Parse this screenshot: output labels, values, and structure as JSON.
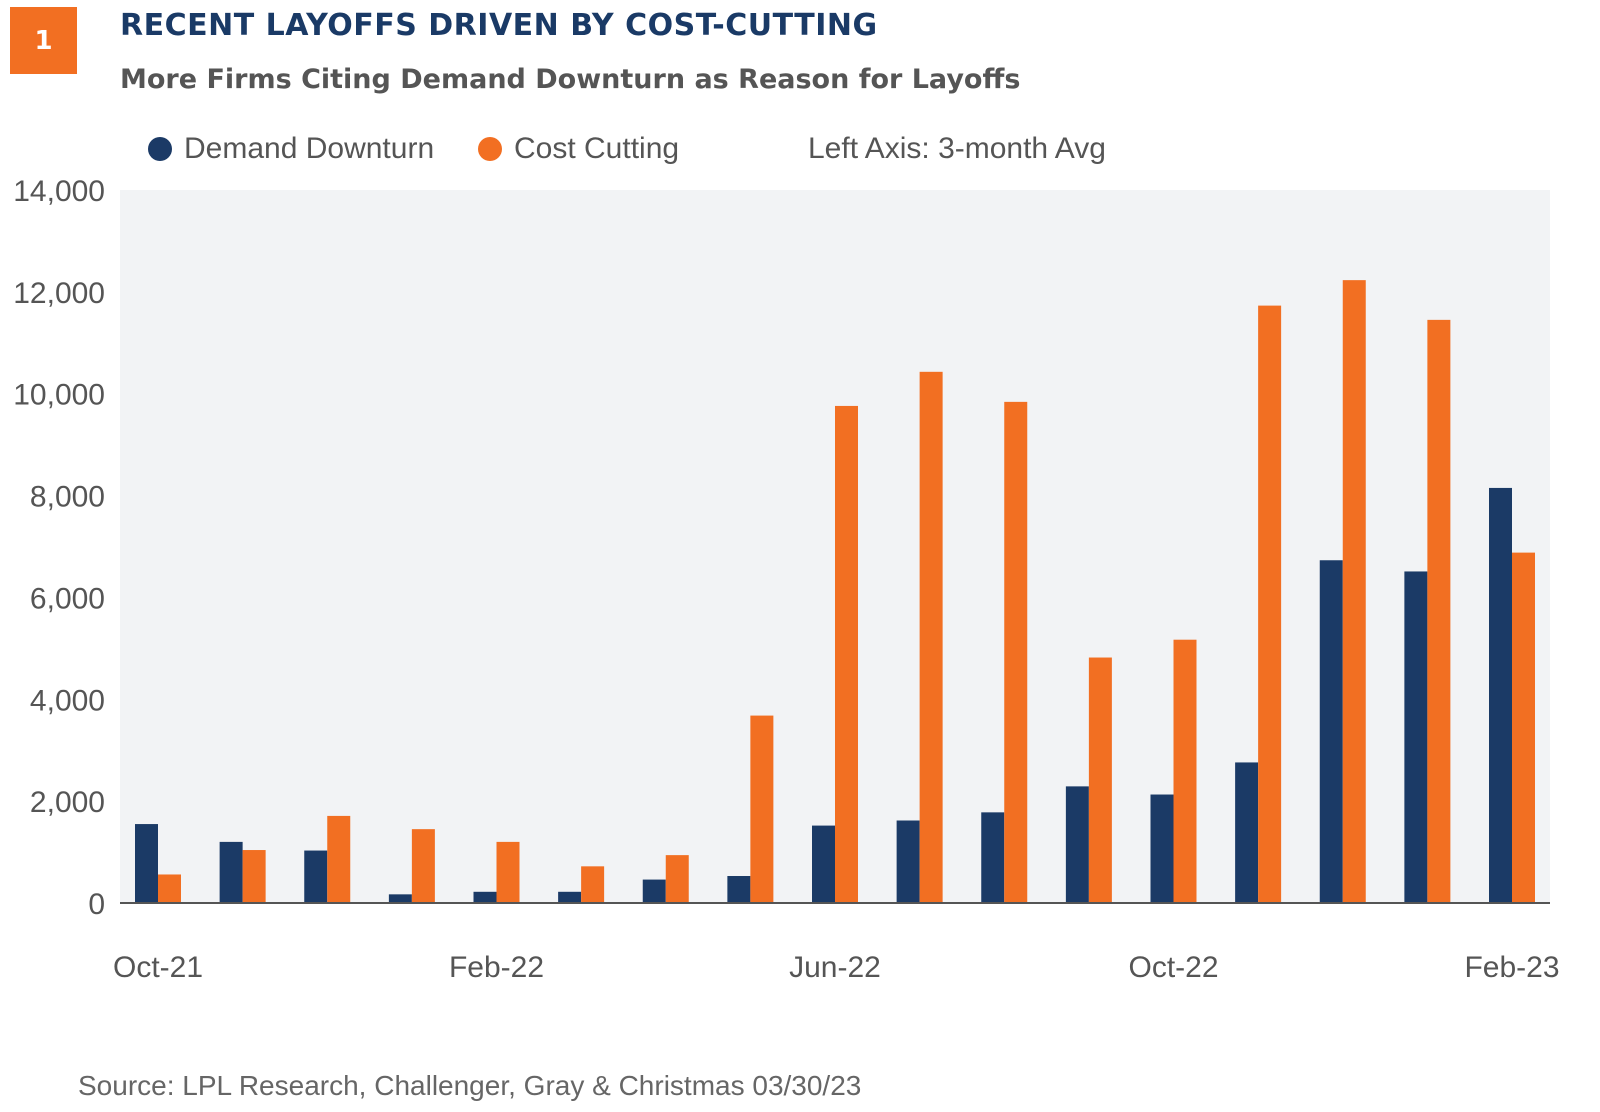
{
  "header": {
    "badge": "1",
    "title": "RECENT LAYOFFS DRIVEN BY COST-CUTTING",
    "subtitle": "More Firms Citing Demand Downturn as Reason for Layoffs"
  },
  "legend": {
    "series1": "Demand Downturn",
    "series2": "Cost Cutting",
    "note": "Left Axis: 3-month Avg"
  },
  "colors": {
    "demand": "#1b3a66",
    "cost": "#f26f22",
    "plot_bg": "#f2f3f5",
    "badge": "#f26f22",
    "title": "#1a3a66"
  },
  "source": "Source: LPL Research, Challenger, Gray & Christmas  03/30/23",
  "chart_data": {
    "type": "bar",
    "title": "RECENT LAYOFFS DRIVEN BY COST-CUTTING",
    "subtitle": "More Firms Citing Demand Downturn as Reason for Layoffs",
    "categories": [
      "Oct-21",
      "Nov-21",
      "Dec-21",
      "Jan-22",
      "Feb-22",
      "Mar-22",
      "Apr-22",
      "May-22",
      "Jun-22",
      "Jul-22",
      "Aug-22",
      "Sep-22",
      "Oct-22",
      "Nov-22",
      "Dec-22",
      "Jan-23",
      "Feb-23"
    ],
    "x_tick_labels": [
      "Oct-21",
      "Feb-22",
      "Jun-22",
      "Oct-22",
      "Feb-23"
    ],
    "x_tick_indices": [
      0,
      4,
      8,
      12,
      16
    ],
    "series": [
      {
        "name": "Demand Downturn",
        "values": [
          1550,
          1200,
          1030,
          170,
          220,
          220,
          460,
          530,
          1520,
          1620,
          1780,
          2290,
          2130,
          2760,
          6730,
          6510,
          8150
        ]
      },
      {
        "name": "Cost Cutting",
        "values": [
          560,
          1040,
          1710,
          1450,
          1200,
          720,
          940,
          3680,
          9760,
          10430,
          9840,
          4820,
          5170,
          11730,
          12230,
          11450,
          6880
        ]
      }
    ],
    "ylim": [
      0,
      14000
    ],
    "y_ticks": [
      0,
      2000,
      4000,
      6000,
      8000,
      10000,
      12000,
      14000
    ],
    "y_tick_labels": [
      "0",
      "2,000",
      "4,000",
      "6,000",
      "8,000",
      "10,000",
      "12,000",
      "14,000"
    ],
    "xlabel": "",
    "ylabel": "",
    "grid": false,
    "legend_position": "top"
  }
}
